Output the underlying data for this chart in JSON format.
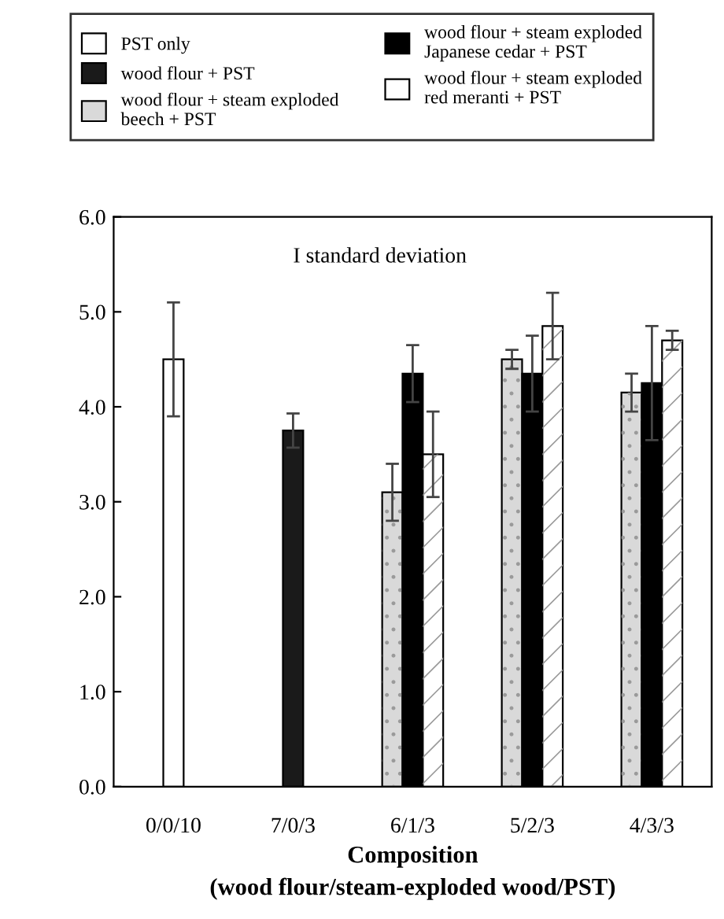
{
  "chart_data": {
    "type": "bar",
    "xlabel": "Composition\n(wood flour/steam-exploded wood/PST)",
    "annotations": [
      "I standard deviation"
    ],
    "categories": [
      "0/0/10",
      "7/0/3",
      "6/1/3",
      "5/2/3",
      "4/3/3"
    ],
    "series": [
      {
        "name": "PST only",
        "color": "#ffffff",
        "values": [
          4.5,
          null,
          null,
          null,
          null
        ],
        "errors": [
          0.6,
          null,
          null,
          null,
          null
        ]
      },
      {
        "name": "wood flour + PST",
        "color": "#1a1a1a",
        "values": [
          null,
          3.75,
          null,
          null,
          null
        ],
        "errors": [
          null,
          0.18,
          null,
          null,
          null
        ]
      },
      {
        "name": "wood flour + steam exploded\nbeech + PST",
        "color": "#d9d9d9",
        "values": [
          null,
          null,
          3.1,
          4.5,
          4.15
        ],
        "errors": [
          null,
          null,
          0.3,
          0.1,
          0.2
        ]
      },
      {
        "name": "wood flour + steam exploded\nJapanese cedar + PST",
        "color": "#000000",
        "values": [
          null,
          null,
          4.35,
          4.35,
          4.25
        ],
        "errors": [
          null,
          null,
          0.3,
          0.4,
          0.6
        ]
      },
      {
        "name": "wood flour + steam exploded\nred meranti + PST",
        "color": "#ffffff",
        "values": [
          null,
          null,
          3.5,
          4.85,
          4.7
        ],
        "errors": [
          null,
          null,
          0.45,
          0.35,
          0.1
        ]
      }
    ],
    "ylim": [
      0,
      6
    ],
    "yticks": [
      {
        "value": 0,
        "label": "0.0"
      },
      {
        "value": 1,
        "label": "1.0"
      },
      {
        "value": 2,
        "label": "2.0"
      },
      {
        "value": 3,
        "label": "3.0"
      },
      {
        "value": 4,
        "label": "4.0"
      },
      {
        "value": 5,
        "label": "5.0"
      },
      {
        "value": 6,
        "label": "6.0"
      }
    ],
    "grid": false,
    "legend": "top"
  }
}
